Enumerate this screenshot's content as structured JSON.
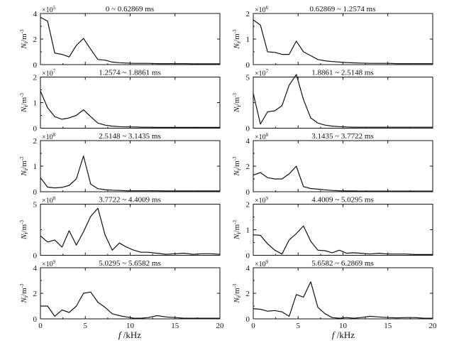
{
  "chart_data": [
    {
      "type": "line",
      "title": "0 ~ 0.62869 ms",
      "exponent": "5",
      "ylabel": "N_i/m^-3",
      "ylim": [
        0,
        4
      ],
      "yticks": [
        "0",
        "2",
        "4"
      ],
      "xlim": [
        0,
        20
      ],
      "xticks": [
        "0",
        "5",
        "10",
        "15",
        "20"
      ],
      "x": [
        0,
        0.8,
        1.6,
        2.4,
        3.2,
        4.0,
        4.8,
        5.6,
        6.4,
        7.2,
        8.0,
        8.8,
        9.6,
        10.4,
        11.2,
        12,
        13,
        14,
        15,
        16,
        17,
        18,
        19,
        20
      ],
      "y": [
        3.7,
        3.4,
        0.9,
        0.8,
        0.6,
        1.5,
        2.05,
        1.2,
        0.4,
        0.35,
        0.2,
        0.15,
        0.12,
        0.1,
        0.1,
        0.1,
        0.08,
        0.08,
        0.08,
        0.08,
        0.06,
        0.06,
        0.06,
        0.06
      ]
    },
    {
      "type": "line",
      "title": "0.62869 ~ 1.2574 ms",
      "exponent": "6",
      "ylabel": "N_i/m^-3",
      "ylim": [
        0,
        2
      ],
      "yticks": [
        "0",
        "1",
        "2"
      ],
      "xlim": [
        0,
        20
      ],
      "xticks": [
        "0",
        "5",
        "10",
        "15",
        "20"
      ],
      "x": [
        0,
        0.8,
        1.6,
        2.4,
        3.2,
        4.0,
        4.8,
        5.6,
        6.4,
        7.2,
        8.0,
        8.8,
        9.6,
        10.4,
        11.2,
        12,
        13,
        14,
        15,
        16,
        17,
        18,
        19,
        20
      ],
      "y": [
        1.75,
        1.55,
        0.5,
        0.48,
        0.4,
        0.4,
        0.92,
        0.5,
        0.35,
        0.2,
        0.15,
        0.12,
        0.1,
        0.08,
        0.07,
        0.06,
        0.05,
        0.05,
        0.05,
        0.04,
        0.04,
        0.04,
        0.04,
        0.04
      ]
    },
    {
      "type": "line",
      "title": "1.2574 ~ 1.8861 ms",
      "exponent": "7",
      "ylabel": "N_i/m^-3",
      "ylim": [
        0,
        2
      ],
      "yticks": [
        "0",
        "1",
        "2"
      ],
      "xlim": [
        0,
        20
      ],
      "xticks": [
        "0",
        "5",
        "10",
        "15",
        "20"
      ],
      "x": [
        0,
        0.8,
        1.6,
        2.4,
        3.2,
        4.0,
        4.8,
        5.6,
        6.4,
        7.2,
        8.0,
        8.8,
        9.6,
        10.4,
        11.2,
        12,
        13,
        14,
        15,
        16,
        17,
        18,
        19,
        20
      ],
      "y": [
        1.45,
        0.8,
        0.45,
        0.35,
        0.4,
        0.5,
        0.72,
        0.45,
        0.2,
        0.12,
        0.08,
        0.06,
        0.05,
        0.05,
        0.04,
        0.04,
        0.03,
        0.03,
        0.03,
        0.03,
        0.03,
        0.03,
        0.03,
        0.03
      ]
    },
    {
      "type": "line",
      "title": "1.8861 ~ 2.5148 ms",
      "exponent": "7",
      "ylabel": "N_i/m^-3",
      "ylim": [
        0,
        5
      ],
      "yticks": [
        "0",
        "5"
      ],
      "xlim": [
        0,
        20
      ],
      "xticks": [
        "0",
        "5",
        "10",
        "15",
        "20"
      ],
      "x": [
        0,
        0.8,
        1.6,
        2.4,
        3.2,
        4.0,
        4.8,
        5.6,
        6.4,
        7.2,
        8.0,
        8.8,
        9.6,
        10.4,
        11.2,
        12,
        13,
        14,
        15,
        16,
        17,
        18,
        19,
        20
      ],
      "y": [
        3.4,
        0.4,
        1.6,
        1.7,
        2.2,
        4.2,
        6.2,
        2.8,
        1.0,
        0.5,
        0.3,
        0.2,
        0.15,
        0.12,
        0.1,
        0.1,
        0.1,
        0.1,
        0.1,
        0.1,
        0.1,
        0.1,
        0.1,
        0.1
      ]
    },
    {
      "type": "line",
      "title": "2.5148 ~ 3.1435 ms",
      "exponent": "8",
      "ylabel": "N_i/m^-3",
      "ylim": [
        0,
        2
      ],
      "yticks": [
        "0",
        "1",
        "2"
      ],
      "xlim": [
        0,
        20
      ],
      "xticks": [
        "0",
        "5",
        "10",
        "15",
        "20"
      ],
      "x": [
        0,
        0.8,
        1.6,
        2.4,
        3.2,
        4.0,
        4.8,
        5.6,
        6.4,
        7.2,
        8.0,
        8.8,
        9.6,
        10.4,
        11.2,
        12,
        13,
        14,
        15,
        16,
        17,
        18,
        19,
        20
      ],
      "y": [
        0.55,
        0.18,
        0.15,
        0.17,
        0.25,
        0.5,
        1.4,
        0.3,
        0.12,
        0.08,
        0.06,
        0.05,
        0.04,
        0.04,
        0.04,
        0.04,
        0.04,
        0.03,
        0.03,
        0.03,
        0.03,
        0.03,
        0.03,
        0.03
      ]
    },
    {
      "type": "line",
      "title": "3.1435 ~ 3.7722 ms",
      "exponent": "8",
      "ylabel": "N_i/m^-3",
      "ylim": [
        0,
        4
      ],
      "yticks": [
        "0",
        "2",
        "4"
      ],
      "xlim": [
        0,
        20
      ],
      "xticks": [
        "0",
        "5",
        "10",
        "15",
        "20"
      ],
      "x": [
        0,
        0.8,
        1.6,
        2.4,
        3.2,
        4.0,
        4.8,
        5.6,
        6.4,
        7.2,
        8.0,
        8.8,
        9.6,
        10.4,
        11.2,
        12,
        13,
        14,
        15,
        16,
        17,
        18,
        19,
        20
      ],
      "y": [
        1.3,
        1.5,
        1.1,
        1.0,
        1.0,
        1.4,
        2.0,
        0.4,
        0.25,
        0.2,
        0.15,
        0.1,
        0.08,
        0.06,
        0.06,
        0.05,
        0.05,
        0.05,
        0.05,
        0.05,
        0.05,
        0.05,
        0.05,
        0.05
      ]
    },
    {
      "type": "line",
      "title": "3.7722 ~ 4.4009 ms",
      "exponent": "8",
      "ylabel": "N_i/m^-3",
      "ylim": [
        0,
        5
      ],
      "yticks": [
        "0",
        "5"
      ],
      "xlim": [
        0,
        20
      ],
      "xticks": [
        "0",
        "5",
        "10",
        "15",
        "20"
      ],
      "x": [
        0,
        0.8,
        1.6,
        2.4,
        3.2,
        4.0,
        4.8,
        5.6,
        6.4,
        7.2,
        8.0,
        8.8,
        9.6,
        10.4,
        11.2,
        12,
        13,
        14,
        15,
        16,
        17,
        18,
        19,
        20
      ],
      "y": [
        1.9,
        1.3,
        1.5,
        0.8,
        2.4,
        1.0,
        2.3,
        3.8,
        4.6,
        2.0,
        0.5,
        1.2,
        0.8,
        0.5,
        0.3,
        0.3,
        0.2,
        0.1,
        0.15,
        0.2,
        0.1,
        0.15,
        0.15,
        0.1
      ]
    },
    {
      "type": "line",
      "title": "4.4009 ~ 5.0295 ms",
      "exponent": "9",
      "ylabel": "N_i/m^-3",
      "ylim": [
        0,
        2
      ],
      "yticks": [
        "0",
        "1",
        "2"
      ],
      "xlim": [
        0,
        20
      ],
      "xticks": [
        "0",
        "5",
        "10",
        "15",
        "20"
      ],
      "x": [
        0,
        0.8,
        1.6,
        2.4,
        3.2,
        4.0,
        4.8,
        5.6,
        6.4,
        7.2,
        8.0,
        8.8,
        9.6,
        10.4,
        11.2,
        12,
        13,
        14,
        15,
        16,
        17,
        18,
        19,
        20
      ],
      "y": [
        0.8,
        0.78,
        0.45,
        0.2,
        0.05,
        0.6,
        0.85,
        1.15,
        0.55,
        0.2,
        0.18,
        0.1,
        0.2,
        0.08,
        0.1,
        0.08,
        0.05,
        0.08,
        0.05,
        0.05,
        0.05,
        0.03,
        0.03,
        0.03
      ]
    },
    {
      "type": "line",
      "title": "5.0295 ~ 5.6582 ms",
      "exponent": "9",
      "ylabel": "N_i/m^-3",
      "ylim": [
        0,
        4
      ],
      "yticks": [
        "0",
        "2",
        "4"
      ],
      "xlim": [
        0,
        20
      ],
      "xticks": [
        "0",
        "5",
        "10",
        "15",
        "20"
      ],
      "x": [
        0,
        0.8,
        1.6,
        2.4,
        3.2,
        4.0,
        4.8,
        5.6,
        6.4,
        7.2,
        8.0,
        8.8,
        9.6,
        10.4,
        11.2,
        12,
        13,
        14,
        15,
        16,
        17,
        18,
        19,
        20
      ],
      "y": [
        1.0,
        1.0,
        0.2,
        0.7,
        0.5,
        1.0,
        2.0,
        2.1,
        1.3,
        0.9,
        0.4,
        0.25,
        0.15,
        0.05,
        0.05,
        0.1,
        0.25,
        0.15,
        0.1,
        0.05,
        0.05,
        0.05,
        0.05,
        0.05
      ]
    },
    {
      "type": "line",
      "title": "5.6582 ~ 6.2869 ms",
      "exponent": "9",
      "ylabel": "N_i/m^-3",
      "ylim": [
        0,
        4
      ],
      "yticks": [
        "0",
        "2",
        "4"
      ],
      "xlim": [
        0,
        20
      ],
      "xticks": [
        "0",
        "5",
        "10",
        "15",
        "20"
      ],
      "x": [
        0,
        0.8,
        1.6,
        2.4,
        3.2,
        4.0,
        4.8,
        5.6,
        6.4,
        7.2,
        8.0,
        8.8,
        9.6,
        10.4,
        11.2,
        12,
        13,
        14,
        15,
        16,
        17,
        18,
        19,
        20
      ],
      "y": [
        0.8,
        0.75,
        0.6,
        0.65,
        0.55,
        0.2,
        1.9,
        1.7,
        2.9,
        0.9,
        0.4,
        0.1,
        0.05,
        0.1,
        0.05,
        0.1,
        0.2,
        0.15,
        0.1,
        0.08,
        0.1,
        0.1,
        0.05,
        0.05
      ]
    }
  ],
  "xaxis": {
    "symbol": "f",
    "unit": "/kHz"
  }
}
